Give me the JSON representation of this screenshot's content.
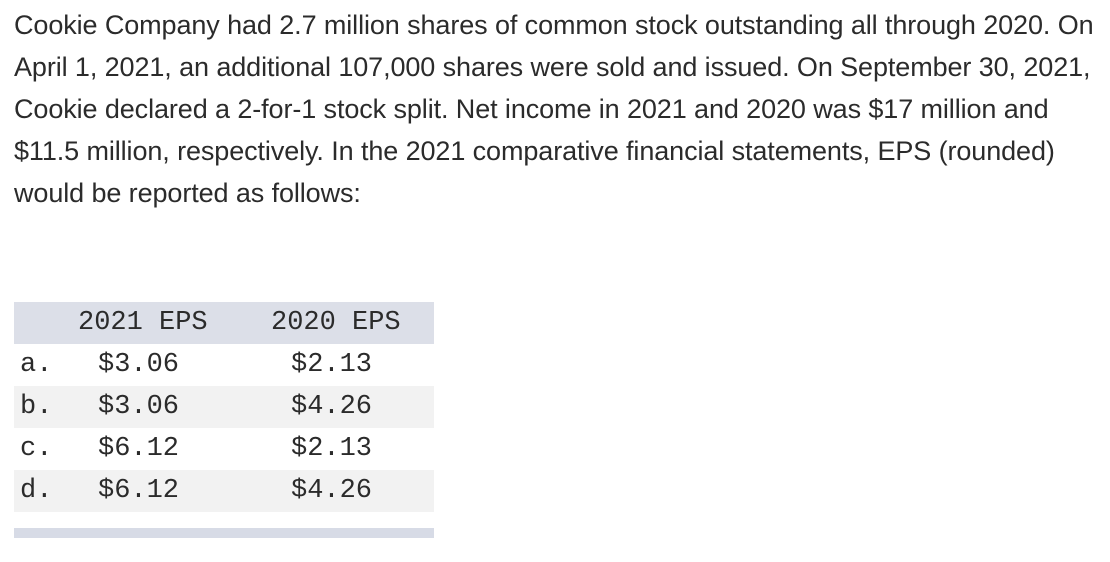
{
  "question_text": "Cookie Company had 2.7 million shares of common stock outstanding all through 2020. On April 1, 2021, an additional 107,000 shares were sold and issued. On September 30, 2021, Cookie declared a 2-for-1 stock split. Net income in 2021 and 2020 was $17 million and $11.5 million, respectively. In the 2021 comparative financial statements, EPS (rounded) would be reported as follows:",
  "table": {
    "headers": [
      "2021 EPS",
      "2020 EPS"
    ],
    "rows": [
      {
        "letter": "a.",
        "eps_2021": "$3.06",
        "eps_2020": "$2.13"
      },
      {
        "letter": "b.",
        "eps_2021": "$3.06",
        "eps_2020": "$4.26"
      },
      {
        "letter": "c.",
        "eps_2021": "$6.12",
        "eps_2020": "$2.13"
      },
      {
        "letter": "d.",
        "eps_2021": "$6.12",
        "eps_2020": "$4.26"
      }
    ]
  },
  "colors": {
    "text": "#2b2b2b",
    "header_bg": "#dcdfe8",
    "shaded_row_bg": "#f2f2f2",
    "footer_bar": "#d7dbe6"
  }
}
